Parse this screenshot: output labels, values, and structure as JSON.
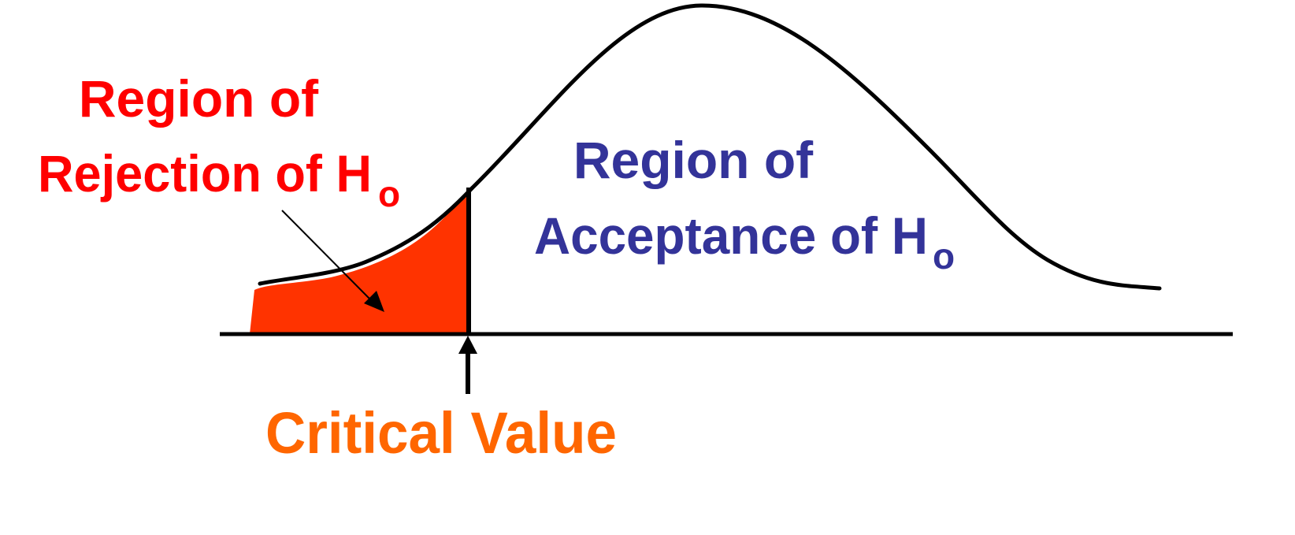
{
  "labels": {
    "rejection": {
      "line1": "Region of",
      "line2": "Rejection of H",
      "subscript": "o",
      "color": "#ff0000"
    },
    "acceptance": {
      "line1": "Region of",
      "line2": "Acceptance of H",
      "subscript": "o",
      "color": "#333399"
    },
    "critical": {
      "text": "Critical Value",
      "color": "#ff6600"
    }
  },
  "colors": {
    "curve": "#000000",
    "rejection_fill": "#ff3300",
    "axis": "#000000"
  }
}
